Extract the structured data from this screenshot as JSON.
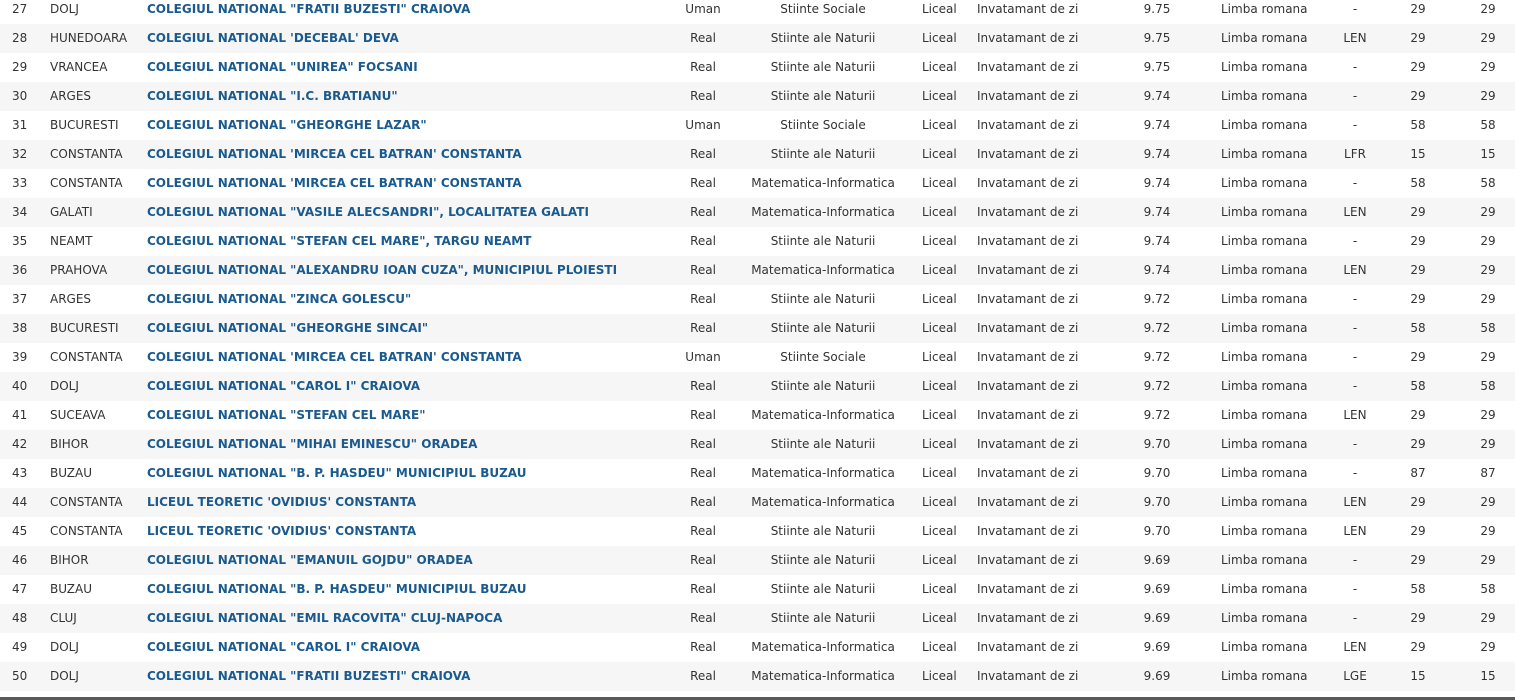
{
  "colors": {
    "link": "#1a5a8e",
    "text": "#333333",
    "row_alt": "#f6f6f6"
  },
  "rows": [
    [
      "27",
      "DOLJ",
      "COLEGIUL NATIONAL \"FRATII BUZESTI\" CRAIOVA",
      "Uman",
      "Stiinte Sociale",
      "Liceal",
      "Invatamant de zi",
      "9.75",
      "Limba romana",
      "-",
      "29",
      "29"
    ],
    [
      "28",
      "HUNEDOARA",
      "COLEGIUL NATIONAL 'DECEBAL' DEVA",
      "Real",
      "Stiinte ale Naturii",
      "Liceal",
      "Invatamant de zi",
      "9.75",
      "Limba romana",
      "LEN",
      "29",
      "29"
    ],
    [
      "29",
      "VRANCEA",
      "COLEGIUL NATIONAL \"UNIREA\" FOCSANI",
      "Real",
      "Stiinte ale Naturii",
      "Liceal",
      "Invatamant de zi",
      "9.75",
      "Limba romana",
      "-",
      "29",
      "29"
    ],
    [
      "30",
      "ARGES",
      "COLEGIUL NATIONAL \"I.C. BRATIANU\"",
      "Real",
      "Stiinte ale Naturii",
      "Liceal",
      "Invatamant de zi",
      "9.74",
      "Limba romana",
      "-",
      "29",
      "29"
    ],
    [
      "31",
      "BUCURESTI",
      "COLEGIUL NATIONAL \"GHEORGHE LAZAR\"",
      "Uman",
      "Stiinte Sociale",
      "Liceal",
      "Invatamant de zi",
      "9.74",
      "Limba romana",
      "-",
      "58",
      "58"
    ],
    [
      "32",
      "CONSTANTA",
      "COLEGIUL NATIONAL 'MIRCEA CEL BATRAN' CONSTANTA",
      "Real",
      "Stiinte ale Naturii",
      "Liceal",
      "Invatamant de zi",
      "9.74",
      "Limba romana",
      "LFR",
      "15",
      "15"
    ],
    [
      "33",
      "CONSTANTA",
      "COLEGIUL NATIONAL 'MIRCEA CEL BATRAN' CONSTANTA",
      "Real",
      "Matematica-Informatica",
      "Liceal",
      "Invatamant de zi",
      "9.74",
      "Limba romana",
      "-",
      "58",
      "58"
    ],
    [
      "34",
      "GALATI",
      "COLEGIUL NATIONAL \"VASILE ALECSANDRI\", LOCALITATEA GALATI",
      "Real",
      "Matematica-Informatica",
      "Liceal",
      "Invatamant de zi",
      "9.74",
      "Limba romana",
      "LEN",
      "29",
      "29"
    ],
    [
      "35",
      "NEAMT",
      "COLEGIUL NATIONAL \"STEFAN CEL MARE\", TARGU NEAMT",
      "Real",
      "Stiinte ale Naturii",
      "Liceal",
      "Invatamant de zi",
      "9.74",
      "Limba romana",
      "-",
      "29",
      "29"
    ],
    [
      "36",
      "PRAHOVA",
      "COLEGIUL NATIONAL \"ALEXANDRU IOAN CUZA\", MUNICIPIUL PLOIESTI",
      "Real",
      "Matematica-Informatica",
      "Liceal",
      "Invatamant de zi",
      "9.74",
      "Limba romana",
      "LEN",
      "29",
      "29"
    ],
    [
      "37",
      "ARGES",
      "COLEGIUL NATIONAL \"ZINCA GOLESCU\"",
      "Real",
      "Stiinte ale Naturii",
      "Liceal",
      "Invatamant de zi",
      "9.72",
      "Limba romana",
      "-",
      "29",
      "29"
    ],
    [
      "38",
      "BUCURESTI",
      "COLEGIUL NATIONAL \"GHEORGHE SINCAI\"",
      "Real",
      "Stiinte ale Naturii",
      "Liceal",
      "Invatamant de zi",
      "9.72",
      "Limba romana",
      "-",
      "58",
      "58"
    ],
    [
      "39",
      "CONSTANTA",
      "COLEGIUL NATIONAL 'MIRCEA CEL BATRAN' CONSTANTA",
      "Uman",
      "Stiinte Sociale",
      "Liceal",
      "Invatamant de zi",
      "9.72",
      "Limba romana",
      "-",
      "29",
      "29"
    ],
    [
      "40",
      "DOLJ",
      "COLEGIUL NATIONAL \"CAROL I\" CRAIOVA",
      "Real",
      "Stiinte ale Naturii",
      "Liceal",
      "Invatamant de zi",
      "9.72",
      "Limba romana",
      "-",
      "58",
      "58"
    ],
    [
      "41",
      "SUCEAVA",
      "COLEGIUL NATIONAL \"STEFAN CEL MARE\"",
      "Real",
      "Matematica-Informatica",
      "Liceal",
      "Invatamant de zi",
      "9.72",
      "Limba romana",
      "LEN",
      "29",
      "29"
    ],
    [
      "42",
      "BIHOR",
      "COLEGIUL NATIONAL \"MIHAI EMINESCU\" ORADEA",
      "Real",
      "Stiinte ale Naturii",
      "Liceal",
      "Invatamant de zi",
      "9.70",
      "Limba romana",
      "-",
      "29",
      "29"
    ],
    [
      "43",
      "BUZAU",
      "COLEGIUL NATIONAL \"B. P. HASDEU\" MUNICIPIUL BUZAU",
      "Real",
      "Matematica-Informatica",
      "Liceal",
      "Invatamant de zi",
      "9.70",
      "Limba romana",
      "-",
      "87",
      "87"
    ],
    [
      "44",
      "CONSTANTA",
      "LICEUL TEORETIC 'OVIDIUS' CONSTANTA",
      "Real",
      "Matematica-Informatica",
      "Liceal",
      "Invatamant de zi",
      "9.70",
      "Limba romana",
      "LEN",
      "29",
      "29"
    ],
    [
      "45",
      "CONSTANTA",
      "LICEUL TEORETIC 'OVIDIUS' CONSTANTA",
      "Real",
      "Stiinte ale Naturii",
      "Liceal",
      "Invatamant de zi",
      "9.70",
      "Limba romana",
      "LEN",
      "29",
      "29"
    ],
    [
      "46",
      "BIHOR",
      "COLEGIUL NATIONAL \"EMANUIL GOJDU\" ORADEA",
      "Real",
      "Stiinte ale Naturii",
      "Liceal",
      "Invatamant de zi",
      "9.69",
      "Limba romana",
      "-",
      "29",
      "29"
    ],
    [
      "47",
      "BUZAU",
      "COLEGIUL NATIONAL \"B. P. HASDEU\" MUNICIPIUL BUZAU",
      "Real",
      "Stiinte ale Naturii",
      "Liceal",
      "Invatamant de zi",
      "9.69",
      "Limba romana",
      "-",
      "58",
      "58"
    ],
    [
      "48",
      "CLUJ",
      "COLEGIUL NATIONAL \"EMIL RACOVITA\" CLUJ-NAPOCA",
      "Real",
      "Stiinte ale Naturii",
      "Liceal",
      "Invatamant de zi",
      "9.69",
      "Limba romana",
      "-",
      "29",
      "29"
    ],
    [
      "49",
      "DOLJ",
      "COLEGIUL NATIONAL \"CAROL I\" CRAIOVA",
      "Real",
      "Matematica-Informatica",
      "Liceal",
      "Invatamant de zi",
      "9.69",
      "Limba romana",
      "LEN",
      "29",
      "29"
    ],
    [
      "50",
      "DOLJ",
      "COLEGIUL NATIONAL \"FRATII BUZESTI\" CRAIOVA",
      "Real",
      "Matematica-Informatica",
      "Liceal",
      "Invatamant de zi",
      "9.69",
      "Limba romana",
      "LGE",
      "15",
      "15"
    ]
  ]
}
